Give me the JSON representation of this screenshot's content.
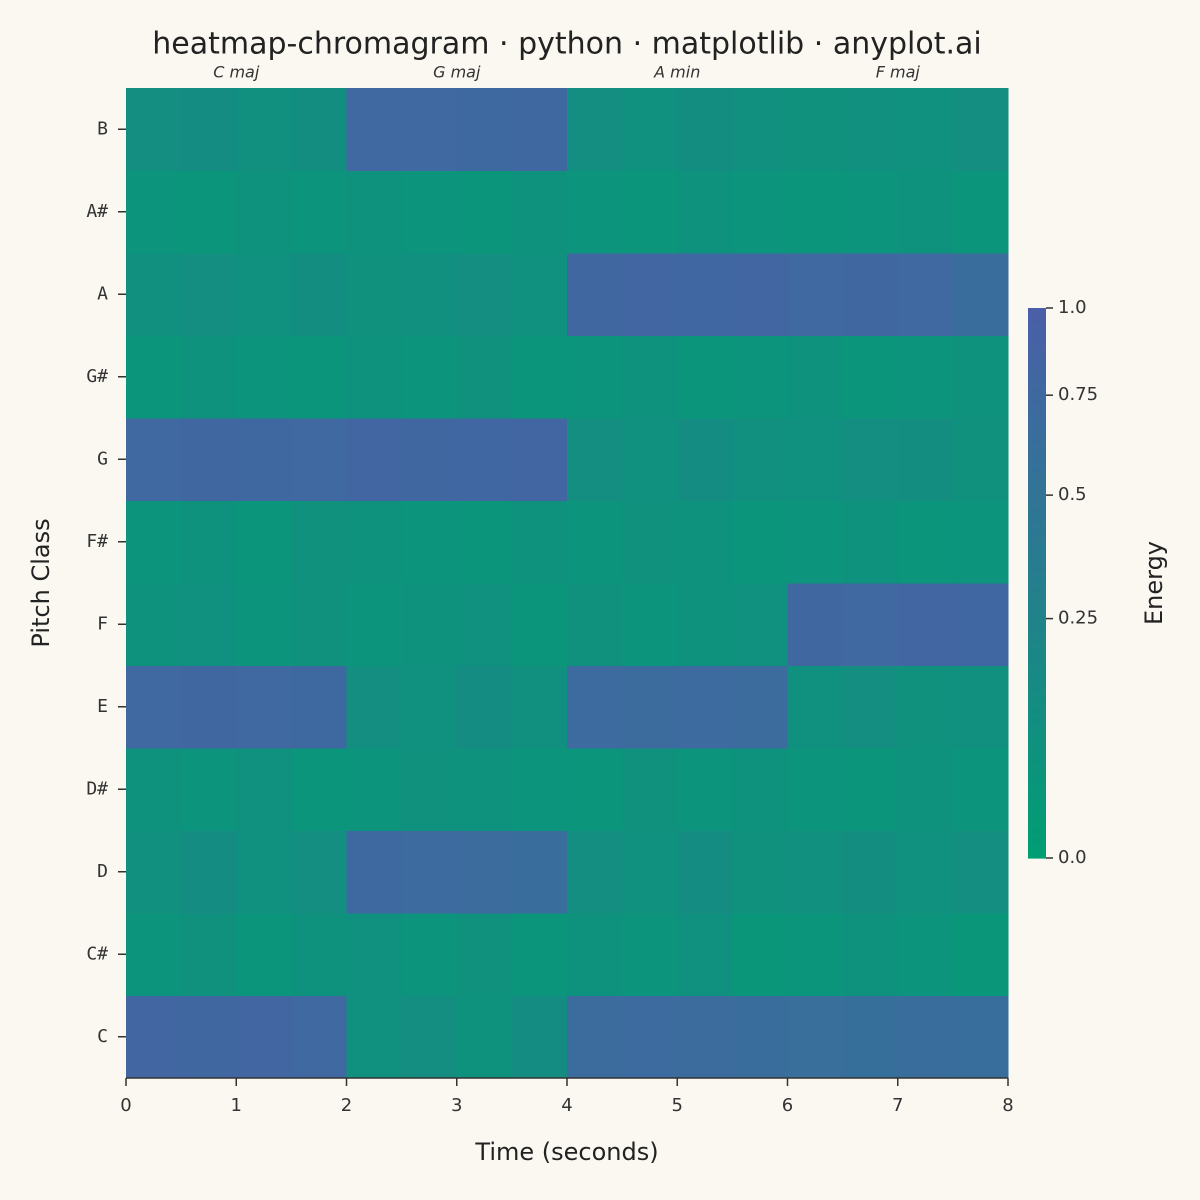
{
  "chart_data": {
    "type": "heatmap",
    "title": "heatmap-chromagram · python · matplotlib · anyplot.ai",
    "x_label": "Time (seconds)",
    "y_label": "Pitch Class",
    "colorbar_label": "Energy",
    "categories": [
      "C",
      "C#",
      "D",
      "D#",
      "E",
      "F",
      "F#",
      "G",
      "G#",
      "A",
      "A#",
      "B"
    ],
    "x": [
      0,
      0.5,
      1,
      1.5,
      2,
      2.5,
      3,
      3.5,
      4,
      4.5,
      5,
      5.5,
      6,
      6.5,
      7,
      7.5,
      8
    ],
    "values": [
      [
        0.82,
        0.8,
        0.83,
        0.78,
        0.08,
        0.1,
        0.06,
        0.12,
        0.7,
        0.72,
        0.68,
        0.65,
        0.62,
        0.6,
        0.65,
        0.63
      ],
      [
        0.05,
        0.07,
        0.04,
        0.06,
        0.08,
        0.05,
        0.07,
        0.04,
        0.06,
        0.05,
        0.08,
        0.03,
        0.04,
        0.06,
        0.05,
        0.03
      ],
      [
        0.09,
        0.12,
        0.08,
        0.1,
        0.75,
        0.72,
        0.7,
        0.65,
        0.1,
        0.08,
        0.12,
        0.07,
        0.09,
        0.11,
        0.08,
        0.1
      ],
      [
        0.06,
        0.05,
        0.08,
        0.04,
        0.05,
        0.07,
        0.06,
        0.05,
        0.04,
        0.07,
        0.05,
        0.06,
        0.05,
        0.04,
        0.06,
        0.05
      ],
      [
        0.78,
        0.8,
        0.76,
        0.75,
        0.1,
        0.08,
        0.12,
        0.09,
        0.72,
        0.7,
        0.73,
        0.71,
        0.08,
        0.1,
        0.07,
        0.09
      ],
      [
        0.06,
        0.08,
        0.05,
        0.07,
        0.05,
        0.06,
        0.08,
        0.04,
        0.07,
        0.05,
        0.06,
        0.08,
        0.8,
        0.78,
        0.82,
        0.79
      ],
      [
        0.05,
        0.06,
        0.04,
        0.07,
        0.06,
        0.05,
        0.04,
        0.06,
        0.05,
        0.07,
        0.06,
        0.04,
        0.05,
        0.06,
        0.04,
        0.05
      ],
      [
        0.78,
        0.8,
        0.77,
        0.76,
        0.82,
        0.8,
        0.79,
        0.81,
        0.1,
        0.08,
        0.12,
        0.09,
        0.08,
        0.1,
        0.11,
        0.07
      ],
      [
        0.04,
        0.06,
        0.05,
        0.04,
        0.06,
        0.05,
        0.07,
        0.04,
        0.05,
        0.06,
        0.04,
        0.05,
        0.06,
        0.04,
        0.05,
        0.06
      ],
      [
        0.09,
        0.1,
        0.08,
        0.11,
        0.07,
        0.09,
        0.1,
        0.08,
        0.8,
        0.82,
        0.79,
        0.81,
        0.78,
        0.8,
        0.76,
        0.65
      ],
      [
        0.05,
        0.04,
        0.06,
        0.05,
        0.06,
        0.05,
        0.04,
        0.06,
        0.05,
        0.04,
        0.06,
        0.05,
        0.04,
        0.05,
        0.06,
        0.04
      ],
      [
        0.1,
        0.12,
        0.09,
        0.11,
        0.76,
        0.78,
        0.75,
        0.77,
        0.1,
        0.08,
        0.11,
        0.09,
        0.07,
        0.09,
        0.08,
        0.1
      ]
    ],
    "annotations": [
      {
        "text": "C maj",
        "x": 1
      },
      {
        "text": "G maj",
        "x": 3
      },
      {
        "text": "A min",
        "x": 5
      },
      {
        "text": "F maj",
        "x": 7
      }
    ],
    "xlim": [
      0,
      8
    ],
    "xticks": [
      0,
      1,
      2,
      3,
      4,
      5,
      6,
      7,
      8
    ],
    "clim": [
      0,
      1
    ],
    "norm_gamma": 0.6,
    "cticks": [
      {
        "value": 0,
        "label": "0.0"
      },
      0.25,
      0.5,
      0.75,
      {
        "value": 1,
        "label": "1.0"
      }
    ],
    "colormap": [
      "#009E73",
      "#4A5FA8"
    ]
  }
}
